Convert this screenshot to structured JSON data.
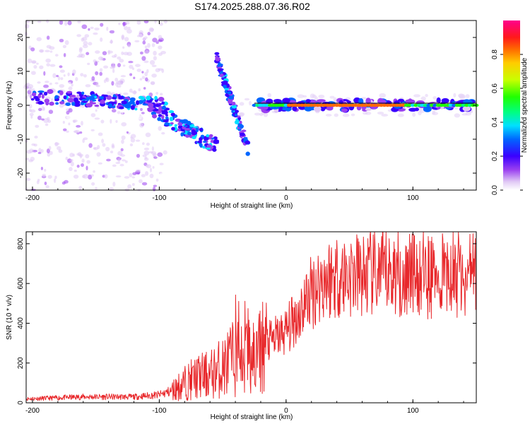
{
  "figure_title": "S174.2025.288.07.36.R02",
  "colors": {
    "axis": "#000000",
    "snr_line": "#e8282b",
    "reference_line": "#000000",
    "background": "#ffffff"
  },
  "chart_data": [
    {
      "type": "heatmap",
      "title": "S174.2025.288.07.36.R02",
      "xlabel": "Height of straight line (km)",
      "ylabel": "Frequency (Hz)",
      "xlim": [
        -205,
        150
      ],
      "ylim": [
        -25,
        25
      ],
      "xticks": [
        -200,
        -100,
        0,
        100
      ],
      "xtick_labels": [
        "-200",
        "-100",
        "0",
        "100"
      ],
      "yticks": [
        -20,
        -10,
        0,
        10,
        20
      ],
      "ytick_labels": [
        "-20",
        "-10",
        "0",
        "10",
        "20"
      ],
      "colorbar": {
        "label": "Normalized spectral amplitude",
        "range": [
          0,
          1
        ],
        "ticks": [
          0.0,
          0.2,
          0.4,
          0.6,
          0.8
        ],
        "tick_labels": [
          "0.0",
          "0.2",
          "0.4",
          "0.6",
          "0.8"
        ],
        "colormap": "rainbow: white-violet-blue-cyan-green-yellow-orange-red-magenta"
      },
      "features": [
        {
          "name": "carrier_line",
          "x_range": [
            -25,
            150
          ],
          "frequency_hz": 0,
          "amplitude": 0.85
        },
        {
          "name": "upper_band",
          "x_range": [
            -200,
            -100
          ],
          "frequency_hz": 2.5,
          "amplitude": 0.35
        },
        {
          "name": "lower_descending_branch",
          "x_start": -110,
          "x_end": -55,
          "f_start": 0,
          "f_end": -12
        },
        {
          "name": "upper_branch_near_-50",
          "x_start": -55,
          "x_end": -30,
          "f_start": 14,
          "f_end": -13
        },
        {
          "name": "low_level_background",
          "x_range": [
            -205,
            -95
          ],
          "frequency_range": [
            -25,
            25
          ],
          "amplitude": 0.1
        }
      ]
    },
    {
      "type": "line",
      "xlabel": "Height of straight line (km)",
      "ylabel": "SNR (10 * v/v)",
      "xlim": [
        -205,
        150
      ],
      "ylim": [
        0,
        860
      ],
      "xticks": [
        -200,
        -100,
        0,
        100
      ],
      "xtick_labels": [
        "-200",
        "-100",
        "0",
        "100"
      ],
      "yticks": [
        0,
        200,
        400,
        600,
        800
      ],
      "ytick_labels": [
        "0",
        "200",
        "400",
        "600",
        "800"
      ],
      "series": [
        {
          "name": "SNR",
          "x": [
            -205,
            -180,
            -160,
            -140,
            -120,
            -100,
            -90,
            -80,
            -70,
            -60,
            -50,
            -40,
            -30,
            -25,
            -20,
            -10,
            0,
            10,
            20,
            30,
            40,
            60,
            80,
            100,
            120,
            140,
            150
          ],
          "values": [
            20,
            25,
            30,
            30,
            30,
            40,
            60,
            100,
            130,
            140,
            180,
            230,
            280,
            200,
            280,
            320,
            360,
            450,
            560,
            620,
            640,
            640,
            650,
            660,
            640,
            640,
            660
          ]
        }
      ]
    }
  ]
}
